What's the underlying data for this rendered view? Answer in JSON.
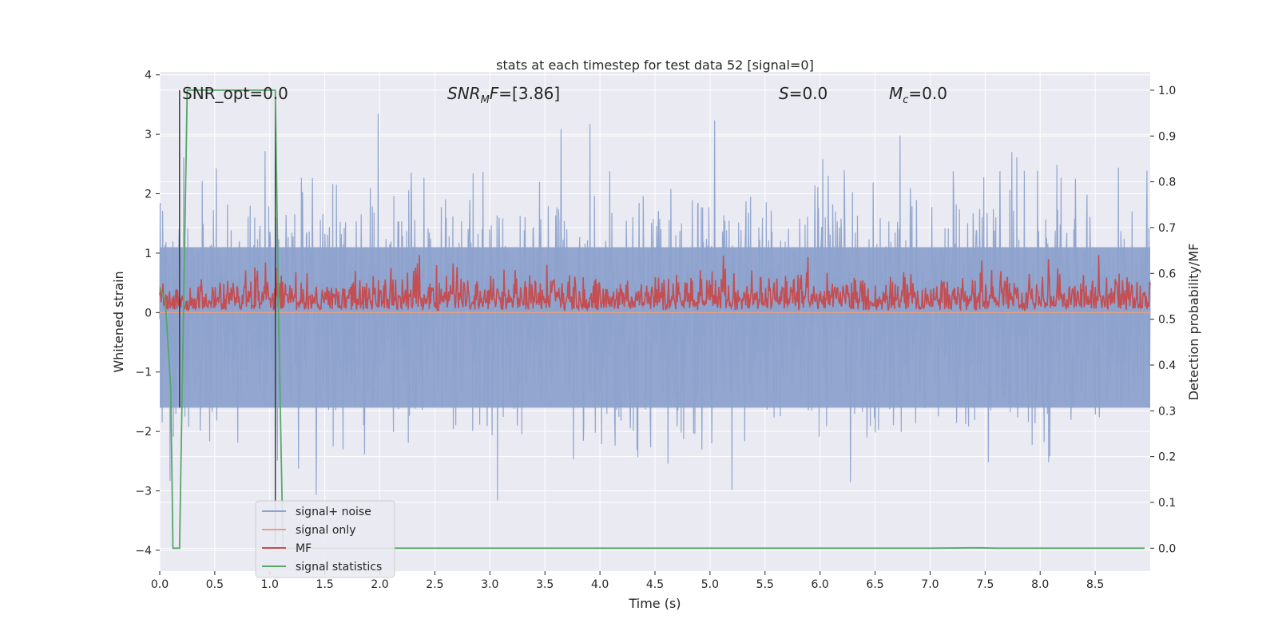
{
  "chart_data": {
    "type": "line",
    "title": "stats at each timestep for test data 52 [signal=0]",
    "xlabel": "Time (s)",
    "ylabel": "Whitened strain",
    "ylabel_right": "Detection probability/MF",
    "xlim": [
      0.0,
      9.0
    ],
    "ylim": [
      -4.35,
      4.05
    ],
    "ylim_right": [
      -0.05,
      1.04
    ],
    "x_ticks": [
      0.0,
      0.5,
      1.0,
      1.5,
      2.0,
      2.5,
      3.0,
      3.5,
      4.0,
      4.5,
      5.0,
      5.5,
      6.0,
      6.5,
      7.0,
      7.5,
      8.0,
      8.5
    ],
    "x_tick_labels": [
      "0.0",
      "0.5",
      "1.0",
      "1.5",
      "2.0",
      "2.5",
      "3.0",
      "3.5",
      "4.0",
      "4.5",
      "5.0",
      "5.5",
      "6.0",
      "6.5",
      "7.0",
      "7.5",
      "8.0",
      "8.5"
    ],
    "y_ticks": [
      -4,
      -3,
      -2,
      -1,
      0,
      1,
      2,
      3,
      4
    ],
    "y_tick_labels": [
      "−4",
      "−3",
      "−2",
      "−1",
      "0",
      "1",
      "2",
      "3",
      "4"
    ],
    "y_right_ticks": [
      0.0,
      0.1,
      0.2,
      0.3,
      0.4,
      0.5,
      0.6,
      0.7,
      0.8,
      0.9,
      1.0
    ],
    "y_right_tick_labels": [
      "0.0",
      "0.1",
      "0.2",
      "0.3",
      "0.4",
      "0.5",
      "0.6",
      "0.7",
      "0.8",
      "0.9",
      "1.0"
    ],
    "grid": true,
    "legend_position": "lower-left",
    "annotations": {
      "snr_opt": "SNR_opt=0.0",
      "snr_mf_main": "SNR",
      "snr_mf_sub": "M",
      "snr_mf_rest": "F=[3.86]",
      "s_main": "S",
      "s_rest": "=0.0",
      "mc_main": "M",
      "mc_sub": "c",
      "mc_rest": "=0.0"
    },
    "series": [
      {
        "name": "signal+ noise",
        "color": "#8da2cc",
        "axis": "left",
        "description_range": [
          -3.9,
          3.7
        ],
        "noise_amplitude": 1.0
      },
      {
        "name": "signal only",
        "color": "#e8a07e",
        "axis": "left",
        "values_constant": 0.0
      },
      {
        "name": "MF",
        "color": "#c44e52",
        "axis": "right",
        "baseline": 0.52,
        "range": [
          0.5,
          0.64
        ]
      },
      {
        "name": "signal statistics",
        "color": "#55a868",
        "axis": "right",
        "x": [
          0.0,
          0.05,
          0.1,
          0.12,
          0.18,
          0.25,
          1.05,
          1.08,
          1.12,
          7.0,
          7.45,
          7.6,
          8.95
        ],
        "values": [
          0.57,
          0.54,
          0.35,
          0.0,
          0.0,
          1.0,
          1.0,
          0.5,
          0.0,
          0.0,
          0.001,
          0.0,
          0.0
        ]
      }
    ],
    "vertical_markers": [
      {
        "x": 0.18,
        "y_top": 1.0,
        "y_bottom": -1.6,
        "color": "#333333"
      },
      {
        "x": 1.05,
        "y_top": 1.0,
        "y_bottom": -3.9,
        "color": "#333333"
      }
    ]
  }
}
